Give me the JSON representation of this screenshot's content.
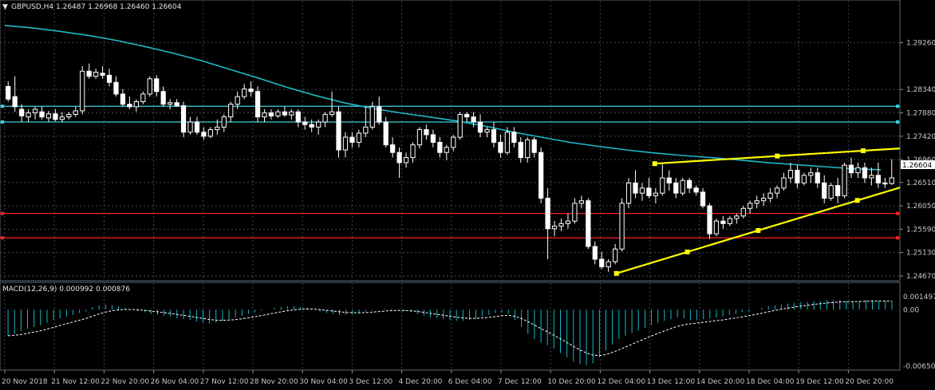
{
  "header": {
    "symbol_line": "GBPUSD,H4  1.26487 1.26968 1.26460 1.26604",
    "macd_line": "MACD(12,26,9) 0.000992 0.000876"
  },
  "colors": {
    "background": "#000000",
    "bull": "#ffffff",
    "bear": "#ffffff",
    "ma": "#1fb8c8",
    "cyan_levels": "#3fd0e0",
    "red_levels": "#ff2020",
    "trendlines": "#ffff00",
    "macd_hist": "#17b8c8",
    "signal": "#ffffff"
  },
  "price_axis": {
    "ticks": [
      "1.29260",
      "1.28340",
      "1.27880",
      "1.27420",
      "1.26960",
      "1.26510",
      "1.26050",
      "1.25590",
      "1.25130",
      "1.24670"
    ],
    "current_price": "1.26604"
  },
  "macd_axis": {
    "ticks": [
      "0.001497",
      "0.00",
      "-0.006507"
    ]
  },
  "time_axis": {
    "labels": [
      "20 Nov 2018",
      "21 Nov 12:00",
      "22 Nov 20:00",
      "26 Nov 04:00",
      "27 Nov 12:00",
      "28 Nov 20:00",
      "30 Nov 04:00",
      "3 Dec 12:00",
      "4 Dec 20:00",
      "6 Dec 04:00",
      "7 Dec 12:00",
      "10 Dec 20:00",
      "12 Dec 04:00",
      "13 Dec 12:00",
      "14 Dec 20:00",
      "18 Dec 04:00",
      "19 Dec 12:00",
      "20 Dec 20:00"
    ]
  },
  "chart_data": {
    "type": "candlestick",
    "symbol": "GBPUSD",
    "timeframe": "H4",
    "last_ohlc": {
      "open": 1.26487,
      "high": 1.26968,
      "low": 1.2646,
      "close": 1.26604
    },
    "ylim": [
      1.2467,
      1.2985
    ],
    "horizontal_levels": {
      "cyan": [
        1.2801,
        1.277
      ],
      "red": [
        1.259,
        1.2542
      ]
    },
    "trendlines": [
      {
        "name": "upper",
        "from": {
          "bar": 0.5,
          "price": 1.2688
        },
        "to": {
          "bar": 1.0,
          "price": 1.2718
        }
      },
      {
        "name": "lower",
        "from": {
          "bar": 0.0,
          "price": 1.2472
        },
        "to": {
          "bar": 1.0,
          "price": 1.2641
        }
      }
    ],
    "candles": [
      [
        1.284,
        1.285,
        1.281,
        1.2815
      ],
      [
        1.282,
        1.286,
        1.279,
        1.28
      ],
      [
        1.2795,
        1.2805,
        1.277,
        1.2782
      ],
      [
        1.278,
        1.2795,
        1.277,
        1.2788
      ],
      [
        1.2788,
        1.28,
        1.2775,
        1.2795
      ],
      [
        1.279,
        1.28,
        1.2775,
        1.278
      ],
      [
        1.2778,
        1.2792,
        1.277,
        1.2786
      ],
      [
        1.2786,
        1.2795,
        1.2772,
        1.2775
      ],
      [
        1.2775,
        1.279,
        1.277,
        1.278
      ],
      [
        1.278,
        1.279,
        1.2775,
        1.2785
      ],
      [
        1.2785,
        1.28,
        1.278,
        1.2792
      ],
      [
        1.2792,
        1.288,
        1.2785,
        1.287
      ],
      [
        1.287,
        1.2885,
        1.2855,
        1.286
      ],
      [
        1.286,
        1.2875,
        1.2855,
        1.2868
      ],
      [
        1.2866,
        1.288,
        1.2855,
        1.2862
      ],
      [
        1.2862,
        1.2875,
        1.284,
        1.2848
      ],
      [
        1.2848,
        1.286,
        1.282,
        1.2825
      ],
      [
        1.2825,
        1.2835,
        1.28,
        1.2805
      ],
      [
        1.2805,
        1.282,
        1.2795,
        1.28
      ],
      [
        1.28,
        1.2815,
        1.279,
        1.281
      ],
      [
        1.281,
        1.283,
        1.2805,
        1.2825
      ],
      [
        1.2825,
        1.286,
        1.282,
        1.2855
      ],
      [
        1.2855,
        1.2862,
        1.282,
        1.283
      ],
      [
        1.283,
        1.284,
        1.28,
        1.2805
      ],
      [
        1.2805,
        1.2815,
        1.2795,
        1.2808
      ],
      [
        1.2808,
        1.2815,
        1.28,
        1.2802
      ],
      [
        1.2802,
        1.281,
        1.274,
        1.275
      ],
      [
        1.275,
        1.278,
        1.2745,
        1.277
      ],
      [
        1.277,
        1.278,
        1.2745,
        1.275
      ],
      [
        1.275,
        1.276,
        1.2735,
        1.2742
      ],
      [
        1.2742,
        1.276,
        1.2738,
        1.2755
      ],
      [
        1.2755,
        1.2775,
        1.2745,
        1.276
      ],
      [
        1.276,
        1.2785,
        1.275,
        1.278
      ],
      [
        1.278,
        1.281,
        1.277,
        1.2805
      ],
      [
        1.2805,
        1.283,
        1.2795,
        1.282
      ],
      [
        1.282,
        1.2845,
        1.2815,
        1.2835
      ],
      [
        1.2835,
        1.285,
        1.282,
        1.283
      ],
      [
        1.283,
        1.284,
        1.277,
        1.278
      ],
      [
        1.278,
        1.2795,
        1.277,
        1.2788
      ],
      [
        1.2788,
        1.2795,
        1.2775,
        1.2782
      ],
      [
        1.2782,
        1.2795,
        1.2778,
        1.279
      ],
      [
        1.279,
        1.28,
        1.278,
        1.2784
      ],
      [
        1.2784,
        1.2795,
        1.2775,
        1.279
      ],
      [
        1.279,
        1.2795,
        1.276,
        1.277
      ],
      [
        1.277,
        1.278,
        1.2755,
        1.2765
      ],
      [
        1.2765,
        1.2775,
        1.275,
        1.276
      ],
      [
        1.276,
        1.2775,
        1.2745,
        1.277
      ],
      [
        1.277,
        1.279,
        1.276,
        1.2785
      ],
      [
        1.2785,
        1.283,
        1.278,
        1.279
      ],
      [
        1.279,
        1.28,
        1.27,
        1.2715
      ],
      [
        1.2715,
        1.275,
        1.27,
        1.274
      ],
      [
        1.274,
        1.275,
        1.272,
        1.273
      ],
      [
        1.273,
        1.2755,
        1.272,
        1.2748
      ],
      [
        1.2748,
        1.28,
        1.274,
        1.276
      ],
      [
        1.276,
        1.281,
        1.2755,
        1.28
      ],
      [
        1.28,
        1.282,
        1.2765,
        1.277
      ],
      [
        1.277,
        1.278,
        1.272,
        1.2725
      ],
      [
        1.2725,
        1.274,
        1.27,
        1.271
      ],
      [
        1.271,
        1.272,
        1.266,
        1.269
      ],
      [
        1.269,
        1.271,
        1.268,
        1.27
      ],
      [
        1.27,
        1.273,
        1.269,
        1.2725
      ],
      [
        1.2725,
        1.276,
        1.2718,
        1.2755
      ],
      [
        1.2755,
        1.2765,
        1.2735,
        1.2745
      ],
      [
        1.2745,
        1.2755,
        1.272,
        1.273
      ],
      [
        1.273,
        1.274,
        1.27,
        1.271
      ],
      [
        1.271,
        1.2725,
        1.2695,
        1.272
      ],
      [
        1.272,
        1.2745,
        1.2712,
        1.274
      ],
      [
        1.274,
        1.279,
        1.2735,
        1.2785
      ],
      [
        1.2785,
        1.279,
        1.277,
        1.278
      ],
      [
        1.278,
        1.279,
        1.276,
        1.277
      ],
      [
        1.277,
        1.2785,
        1.274,
        1.275
      ],
      [
        1.275,
        1.276,
        1.274,
        1.2755
      ],
      [
        1.2755,
        1.277,
        1.272,
        1.273
      ],
      [
        1.273,
        1.2745,
        1.27,
        1.271
      ],
      [
        1.271,
        1.276,
        1.2705,
        1.275
      ],
      [
        1.275,
        1.276,
        1.272,
        1.273
      ],
      [
        1.273,
        1.274,
        1.269,
        1.27
      ],
      [
        1.27,
        1.274,
        1.269,
        1.2735
      ],
      [
        1.2735,
        1.274,
        1.27,
        1.271
      ],
      [
        1.271,
        1.272,
        1.261,
        1.262
      ],
      [
        1.262,
        1.264,
        1.25,
        1.256
      ],
      [
        1.256,
        1.2575,
        1.2545,
        1.2565
      ],
      [
        1.2565,
        1.258,
        1.2555,
        1.257
      ],
      [
        1.257,
        1.259,
        1.256,
        1.2575
      ],
      [
        1.2575,
        1.262,
        1.257,
        1.261
      ],
      [
        1.261,
        1.2625,
        1.26,
        1.2615
      ],
      [
        1.2615,
        1.262,
        1.252,
        1.2525
      ],
      [
        1.2525,
        1.2535,
        1.249,
        1.25
      ],
      [
        1.25,
        1.2515,
        1.248,
        1.2485
      ],
      [
        1.2485,
        1.25,
        1.2475,
        1.2495
      ],
      [
        1.2495,
        1.253,
        1.249,
        1.252
      ],
      [
        1.252,
        1.262,
        1.2515,
        1.261
      ],
      [
        1.261,
        1.266,
        1.26,
        1.265
      ],
      [
        1.265,
        1.2675,
        1.262,
        1.263
      ],
      [
        1.263,
        1.265,
        1.2615,
        1.264
      ],
      [
        1.264,
        1.266,
        1.262,
        1.2625
      ],
      [
        1.2625,
        1.264,
        1.261,
        1.263
      ],
      [
        1.263,
        1.269,
        1.2625,
        1.266
      ],
      [
        1.266,
        1.2675,
        1.2635,
        1.265
      ],
      [
        1.265,
        1.266,
        1.262,
        1.263
      ],
      [
        1.263,
        1.266,
        1.2625,
        1.2655
      ],
      [
        1.2655,
        1.266,
        1.263,
        1.264
      ],
      [
        1.264,
        1.2645,
        1.2625,
        1.2632
      ],
      [
        1.2632,
        1.264,
        1.26,
        1.2605
      ],
      [
        1.2605,
        1.261,
        1.254,
        1.255
      ],
      [
        1.255,
        1.258,
        1.2545,
        1.2575
      ],
      [
        1.2575,
        1.2585,
        1.256,
        1.257
      ],
      [
        1.257,
        1.2585,
        1.2565,
        1.258
      ],
      [
        1.258,
        1.259,
        1.257,
        1.2585
      ],
      [
        1.2585,
        1.2605,
        1.258,
        1.26
      ],
      [
        1.26,
        1.2615,
        1.259,
        1.261
      ],
      [
        1.261,
        1.2625,
        1.26,
        1.2615
      ],
      [
        1.2615,
        1.263,
        1.2605,
        1.262
      ],
      [
        1.262,
        1.264,
        1.2612,
        1.263
      ],
      [
        1.263,
        1.2645,
        1.262,
        1.264
      ],
      [
        1.264,
        1.267,
        1.2635,
        1.266
      ],
      [
        1.266,
        1.269,
        1.265,
        1.2675
      ],
      [
        1.2675,
        1.2685,
        1.264,
        1.265
      ],
      [
        1.265,
        1.267,
        1.2645,
        1.2665
      ],
      [
        1.2665,
        1.268,
        1.265,
        1.267
      ],
      [
        1.267,
        1.268,
        1.264,
        1.265
      ],
      [
        1.265,
        1.2665,
        1.261,
        1.262
      ],
      [
        1.262,
        1.265,
        1.2615,
        1.2645
      ],
      [
        1.2645,
        1.266,
        1.261,
        1.2625
      ],
      [
        1.2625,
        1.269,
        1.262,
        1.2685
      ],
      [
        1.2685,
        1.27,
        1.266,
        1.267
      ],
      [
        1.267,
        1.269,
        1.266,
        1.268
      ],
      [
        1.268,
        1.269,
        1.265,
        1.266
      ],
      [
        1.266,
        1.268,
        1.2645,
        1.2665
      ],
      [
        1.2665,
        1.269,
        1.264,
        1.265
      ],
      [
        1.265,
        1.266,
        1.264,
        1.2648
      ],
      [
        1.2649,
        1.2697,
        1.2646,
        1.266
      ]
    ],
    "ma_values": [
      1.296,
      1.2955,
      1.2948,
      1.294,
      1.293,
      1.2918,
      1.2905,
      1.289,
      1.2873,
      1.2856,
      1.2838,
      1.2822,
      1.2808,
      1.2797,
      1.2788,
      1.278,
      1.2772,
      1.2762,
      1.275,
      1.274,
      1.273,
      1.2722,
      1.2715,
      1.2709,
      1.2704,
      1.27,
      1.2695,
      1.269,
      1.2686,
      1.2682,
      1.2678,
      1.2676
    ],
    "macd_hist": [
      -0.003,
      -0.0028,
      -0.0025,
      -0.0022,
      -0.002,
      -0.0018,
      -0.0015,
      -0.0012,
      -0.001,
      -0.0008,
      -0.0006,
      -0.0004,
      -0.0002,
      0.0003,
      0.0005,
      0.0006,
      0.0005,
      0.0004,
      0.0002,
      0.0,
      -0.0002,
      -0.0003,
      -0.0005,
      -0.0006,
      -0.0007,
      -0.0008,
      -0.001,
      -0.0011,
      -0.0012,
      -0.0014,
      -0.0015,
      -0.0016,
      -0.0015,
      -0.0013,
      -0.0011,
      -0.0009,
      -0.0007,
      -0.0005,
      -0.0003,
      -0.0001,
      0.0,
      0.0002,
      0.0003,
      0.0004,
      0.0004,
      0.0003,
      0.0002,
      0.0,
      -0.0002,
      -0.0004,
      -0.0005,
      -0.0006,
      -0.0006,
      -0.0005,
      -0.0004,
      -0.0002,
      -0.0001,
      0.0,
      0.0001,
      0.0001,
      0.0,
      -0.0001,
      -0.0003,
      -0.0005,
      -0.0007,
      -0.0009,
      -0.001,
      -0.0011,
      -0.0012,
      -0.0013,
      -0.0013,
      -0.0012,
      -0.001,
      -0.0008,
      -0.0006,
      -0.0004,
      -0.0003,
      -0.0005,
      -0.0012,
      -0.002,
      -0.0028,
      -0.0034,
      -0.0038,
      -0.0041,
      -0.0045,
      -0.005,
      -0.0055,
      -0.006,
      -0.0063,
      -0.0064,
      -0.0062,
      -0.0055,
      -0.0047,
      -0.004,
      -0.0034,
      -0.003,
      -0.0027,
      -0.0024,
      -0.0021,
      -0.0018,
      -0.0015,
      -0.0013,
      -0.0011,
      -0.0009,
      -0.001,
      -0.0012,
      -0.0012,
      -0.0011,
      -0.001,
      -0.0009,
      -0.0008,
      -0.0006,
      -0.0005,
      -0.0003,
      -0.0002,
      0.0,
      0.0002,
      0.0004,
      0.0005,
      0.0006,
      0.0007,
      0.0008,
      0.0009,
      0.0009,
      0.001,
      0.001,
      0.0011,
      0.0011,
      0.0011,
      0.001,
      0.001,
      0.001,
      0.0011,
      0.0011,
      0.001,
      0.001,
      0.001
    ]
  }
}
